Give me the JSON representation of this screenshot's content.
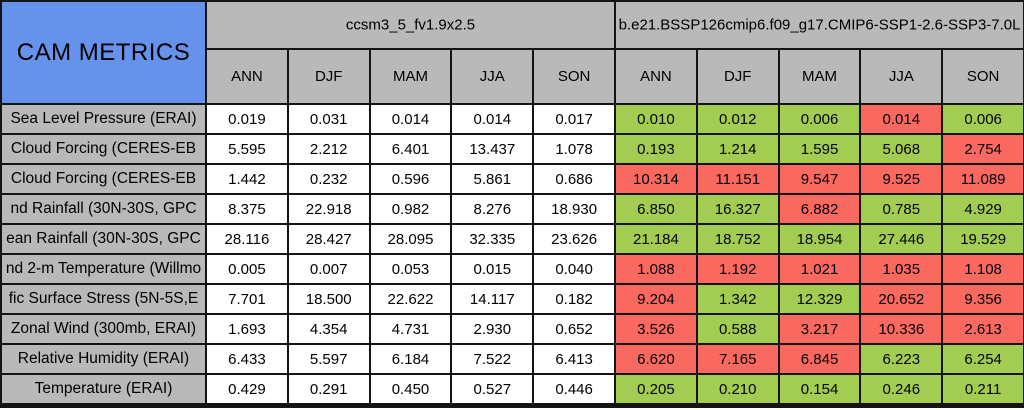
{
  "colors": {
    "header_blue": "#6592ea",
    "header_gray": "#b9b9b9",
    "cell_white": "#ffffff",
    "better_green": "#a3cd52",
    "worse_red": "#f9695f",
    "border_black": "#141414"
  },
  "chart_data": {
    "type": "table",
    "title": "CAM METRICS",
    "column_groups": [
      {
        "label": "ccsm3_5_fv1.9x2.5",
        "seasons": [
          "ANN",
          "DJF",
          "MAM",
          "JJA",
          "SON"
        ]
      },
      {
        "label": "b.e21.BSSP126cmip6.f09_g17.CMIP6-SSP1-2.6-SSP3-7.0L",
        "seasons": [
          "ANN",
          "DJF",
          "MAM",
          "JJA",
          "SON"
        ]
      }
    ],
    "legend_note": "comparison cells shaded green (better) or red (worse) vs baseline",
    "rows": [
      {
        "label": "Sea Level Pressure (ERAI)",
        "baseline": [
          "0.019",
          "0.031",
          "0.014",
          "0.014",
          "0.017"
        ],
        "comparison": [
          "0.010",
          "0.012",
          "0.006",
          "0.014",
          "0.006"
        ],
        "comparison_flags": [
          "better",
          "better",
          "better",
          "worse",
          "better"
        ]
      },
      {
        "label": "Cloud Forcing (CERES-EB",
        "baseline": [
          "5.595",
          "2.212",
          "6.401",
          "13.437",
          "1.078"
        ],
        "comparison": [
          "0.193",
          "1.214",
          "1.595",
          "5.068",
          "2.754"
        ],
        "comparison_flags": [
          "better",
          "better",
          "better",
          "better",
          "worse"
        ]
      },
      {
        "label": "Cloud Forcing (CERES-EB",
        "baseline": [
          "1.442",
          "0.232",
          "0.596",
          "5.861",
          "0.686"
        ],
        "comparison": [
          "10.314",
          "11.151",
          "9.547",
          "9.525",
          "11.089"
        ],
        "comparison_flags": [
          "worse",
          "worse",
          "worse",
          "worse",
          "worse"
        ]
      },
      {
        "label": "nd Rainfall (30N-30S, GPC",
        "baseline": [
          "8.375",
          "22.918",
          "0.982",
          "8.276",
          "18.930"
        ],
        "comparison": [
          "6.850",
          "16.327",
          "6.882",
          "0.785",
          "4.929"
        ],
        "comparison_flags": [
          "better",
          "better",
          "worse",
          "better",
          "better"
        ]
      },
      {
        "label": "ean Rainfall (30N-30S, GPC",
        "baseline": [
          "28.116",
          "28.427",
          "28.095",
          "32.335",
          "23.626"
        ],
        "comparison": [
          "21.184",
          "18.752",
          "18.954",
          "27.446",
          "19.529"
        ],
        "comparison_flags": [
          "better",
          "better",
          "better",
          "better",
          "better"
        ]
      },
      {
        "label": "nd 2-m Temperature (Willmo",
        "baseline": [
          "0.005",
          "0.007",
          "0.053",
          "0.015",
          "0.040"
        ],
        "comparison": [
          "1.088",
          "1.192",
          "1.021",
          "1.035",
          "1.108"
        ],
        "comparison_flags": [
          "worse",
          "worse",
          "worse",
          "worse",
          "worse"
        ]
      },
      {
        "label": "fic Surface Stress (5N-5S,E",
        "baseline": [
          "7.701",
          "18.500",
          "22.622",
          "14.117",
          "0.182"
        ],
        "comparison": [
          "9.204",
          "1.342",
          "12.329",
          "20.652",
          "9.356"
        ],
        "comparison_flags": [
          "worse",
          "better",
          "better",
          "worse",
          "worse"
        ]
      },
      {
        "label": "Zonal Wind (300mb, ERAI)",
        "baseline": [
          "1.693",
          "4.354",
          "4.731",
          "2.930",
          "0.652"
        ],
        "comparison": [
          "3.526",
          "0.588",
          "3.217",
          "10.336",
          "2.613"
        ],
        "comparison_flags": [
          "worse",
          "better",
          "worse",
          "worse",
          "worse"
        ]
      },
      {
        "label": "Relative Humidity (ERAI)",
        "baseline": [
          "6.433",
          "5.597",
          "6.184",
          "7.522",
          "6.413"
        ],
        "comparison": [
          "6.620",
          "7.165",
          "6.845",
          "6.223",
          "6.254"
        ],
        "comparison_flags": [
          "worse",
          "worse",
          "worse",
          "better",
          "better"
        ]
      },
      {
        "label": "Temperature (ERAI)",
        "baseline": [
          "0.429",
          "0.291",
          "0.450",
          "0.527",
          "0.446"
        ],
        "comparison": [
          "0.205",
          "0.210",
          "0.154",
          "0.246",
          "0.211"
        ],
        "comparison_flags": [
          "better",
          "better",
          "better",
          "better",
          "better"
        ]
      }
    ]
  }
}
